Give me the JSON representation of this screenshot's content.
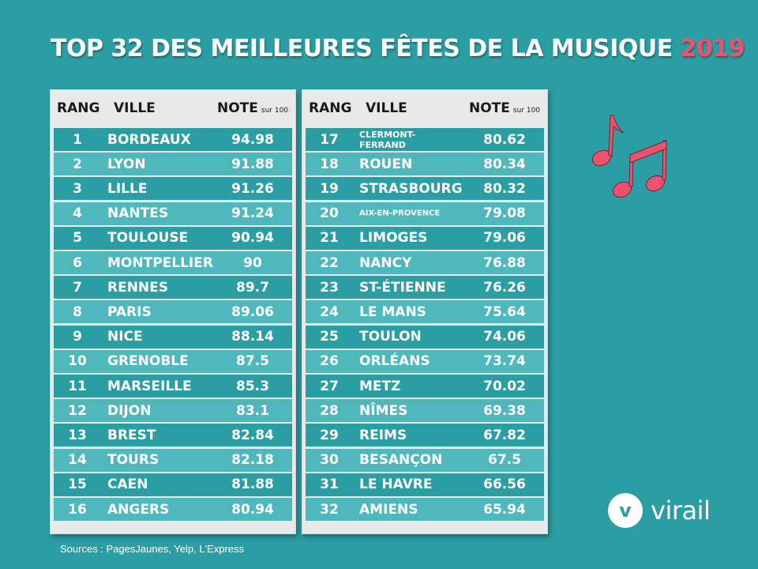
{
  "title": {
    "main": "TOP 32 DES MEILLEURES FÊTES DE LA MUSIQUE",
    "year": "2019"
  },
  "headers": {
    "rang": "RANG",
    "ville": "VILLE",
    "note": "NOTE",
    "note_suffix": "sur 100"
  },
  "source": "Sources : PagesJaunes, Yelp, L'Express",
  "logo": {
    "letter": "v",
    "name": "virail"
  },
  "colors": {
    "background": "#2a9ea3",
    "row_dark": "#2a9ea3",
    "row_light": "#4fb8bd",
    "accent": "#f0516e"
  },
  "icons": [
    "music-notes-icon"
  ],
  "chart_data": {
    "type": "table",
    "columns": [
      "RANG",
      "VILLE",
      "NOTE sur 100"
    ],
    "rows": [
      [
        1,
        "BORDEAUX",
        "94.98"
      ],
      [
        2,
        "LYON",
        "91.88"
      ],
      [
        3,
        "LILLE",
        "91.26"
      ],
      [
        4,
        "NANTES",
        "91.24"
      ],
      [
        5,
        "TOULOUSE",
        "90.94"
      ],
      [
        6,
        "MONTPELLIER",
        "90"
      ],
      [
        7,
        "RENNES",
        "89.7"
      ],
      [
        8,
        "PARIS",
        "89.06"
      ],
      [
        9,
        "NICE",
        "88.14"
      ],
      [
        10,
        "GRENOBLE",
        "87.5"
      ],
      [
        11,
        "MARSEILLE",
        "85.3"
      ],
      [
        12,
        "DIJON",
        "83.1"
      ],
      [
        13,
        "BREST",
        "82.84"
      ],
      [
        14,
        "TOURS",
        "82.18"
      ],
      [
        15,
        "CAEN",
        "81.88"
      ],
      [
        16,
        "ANGERS",
        "80.94"
      ],
      [
        17,
        "CLERMONT-FERRAND",
        "80.62"
      ],
      [
        18,
        "ROUEN",
        "80.34"
      ],
      [
        19,
        "STRASBOURG",
        "80.32"
      ],
      [
        20,
        "AIX-EN-PROVENCE",
        "79.08"
      ],
      [
        21,
        "LIMOGES",
        "79.06"
      ],
      [
        22,
        "NANCY",
        "76.88"
      ],
      [
        23,
        "ST-ÉTIENNE",
        "76.26"
      ],
      [
        24,
        "LE MANS",
        "75.64"
      ],
      [
        25,
        "TOULON",
        "74.06"
      ],
      [
        26,
        "ORLÉANS",
        "73.74"
      ],
      [
        27,
        "METZ",
        "70.02"
      ],
      [
        28,
        "NÎMES",
        "69.38"
      ],
      [
        29,
        "REIMS",
        "67.82"
      ],
      [
        30,
        "BESANÇON",
        "67.5"
      ],
      [
        31,
        "LE HAVRE",
        "66.56"
      ],
      [
        32,
        "AMIENS",
        "65.94"
      ]
    ]
  }
}
